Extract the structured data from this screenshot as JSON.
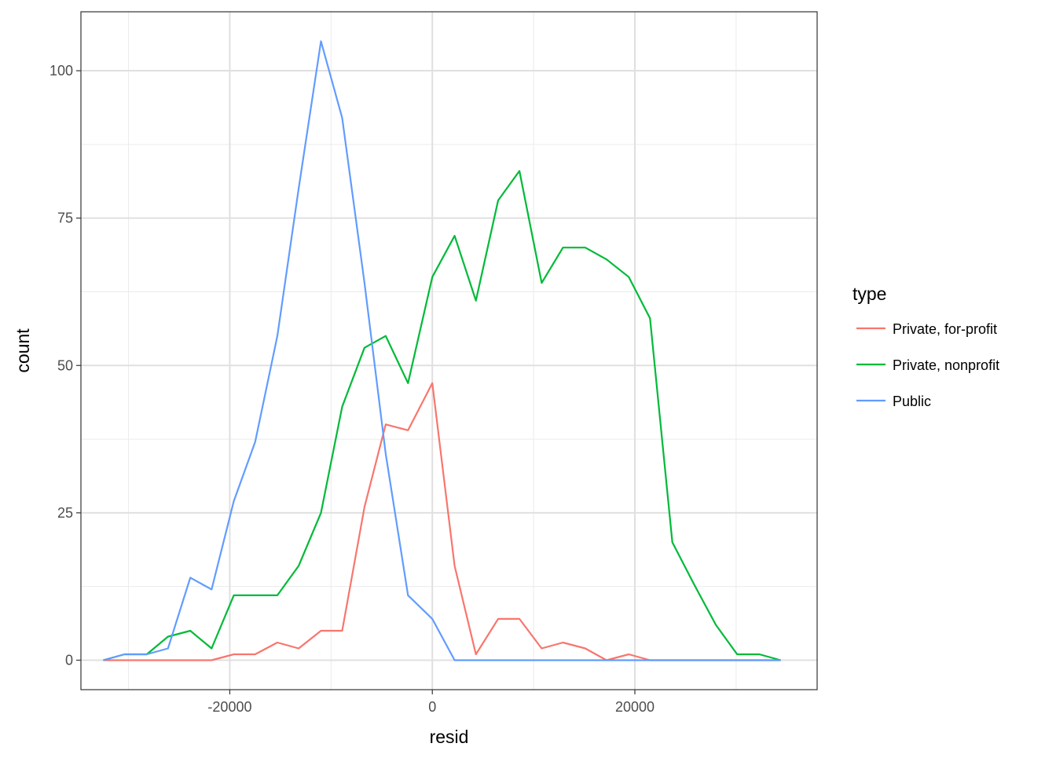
{
  "chart_data": {
    "type": "line",
    "xlabel": "resid",
    "ylabel": "count",
    "xlim": [
      -34700,
      38000
    ],
    "ylim": [
      -5,
      110
    ],
    "x_ticks": [
      -20000,
      0,
      20000
    ],
    "x_tick_labels": [
      "-20000",
      "0",
      "20000"
    ],
    "x_minor": [
      -30000,
      -10000,
      10000,
      30000
    ],
    "y_ticks": [
      0,
      25,
      50,
      75,
      100
    ],
    "y_tick_labels": [
      "0",
      "25",
      "50",
      "75",
      "100"
    ],
    "y_minor": [
      12.5,
      37.5,
      62.5,
      87.5
    ],
    "grid": true,
    "legend": {
      "title": "type",
      "position": "right"
    },
    "x": [
      -32500,
      -30400,
      -28200,
      -26100,
      -23900,
      -21800,
      -19600,
      -17500,
      -15300,
      -13200,
      -11000,
      -8900,
      -6700,
      -4600,
      -2400,
      0,
      2200,
      4300,
      6500,
      8600,
      10800,
      12900,
      15100,
      17200,
      19400,
      21500,
      23700,
      25800,
      28000,
      30100,
      32300,
      34400
    ],
    "series": [
      {
        "name": "Private, for-profit",
        "color": "#F8766D",
        "values": [
          0,
          0,
          0,
          0,
          0,
          0,
          1,
          1,
          3,
          2,
          5,
          5,
          26,
          40,
          39,
          47,
          16,
          1,
          7,
          7,
          2,
          3,
          2,
          0,
          1,
          0,
          0,
          0,
          0,
          0,
          0,
          0
        ]
      },
      {
        "name": "Private, nonprofit",
        "color": "#00BA38",
        "values": [
          0,
          1,
          1,
          4,
          5,
          2,
          11,
          11,
          11,
          16,
          25,
          43,
          53,
          55,
          47,
          65,
          72,
          61,
          78,
          83,
          64,
          70,
          70,
          68,
          65,
          58,
          20,
          13,
          6,
          1,
          1,
          0
        ]
      },
      {
        "name": "Public",
        "color": "#619CFF",
        "values": [
          0,
          1,
          1,
          2,
          14,
          12,
          27,
          37,
          55,
          80,
          105,
          92,
          64,
          35,
          11,
          7,
          0,
          0,
          0,
          0,
          0,
          0,
          0,
          0,
          0,
          0,
          0,
          0,
          0,
          0,
          0,
          0
        ]
      }
    ]
  }
}
